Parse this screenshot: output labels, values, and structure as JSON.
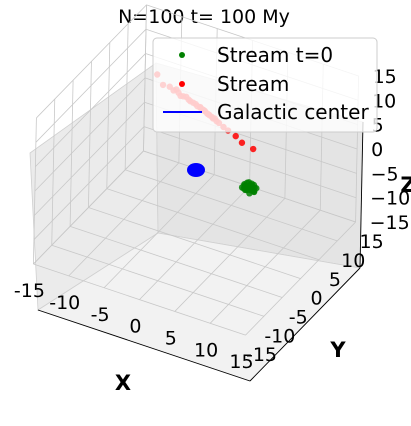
{
  "chart_data": {
    "type": "scatter",
    "projection": "3d",
    "title": "N=100 t= 100 My",
    "xlabel": "X",
    "ylabel": "Y",
    "zlabel": "Z",
    "xlim": [
      -15,
      15
    ],
    "ylim": [
      -15,
      15
    ],
    "zlim": [
      -15,
      15
    ],
    "xticks": [
      -15,
      -10,
      -5,
      0,
      5,
      10,
      15
    ],
    "yticks": [
      -15,
      -10,
      -5,
      0,
      5,
      10,
      15
    ],
    "zticks": [
      -15,
      -10,
      -5,
      0,
      5,
      10,
      15
    ],
    "xtick_labels": [
      "-15",
      "-10",
      "-5",
      "0",
      "5",
      "10",
      "15"
    ],
    "ytick_labels": [
      "-15",
      "-10",
      "-5",
      "0",
      "5",
      "10",
      "15"
    ],
    "ztick_labels": [
      "−15",
      "−10",
      "−5",
      "0",
      "5",
      "10",
      "15"
    ],
    "grid": true,
    "legend_position": "upper-right",
    "series": [
      {
        "name": "Stream t=0",
        "kind": "scatter",
        "color": "#008000",
        "points": [
          [
            5.0,
            5.0,
            -5.0
          ],
          [
            5.3,
            5.2,
            -4.8
          ],
          [
            4.7,
            4.8,
            -5.3
          ],
          [
            5.5,
            4.6,
            -5.1
          ],
          [
            4.5,
            5.4,
            -4.6
          ],
          [
            5.1,
            5.6,
            -5.4
          ],
          [
            4.9,
            4.4,
            -4.9
          ],
          [
            5.7,
            5.0,
            -5.6
          ],
          [
            4.3,
            5.1,
            -5.2
          ],
          [
            5.2,
            4.9,
            -4.4
          ],
          [
            4.8,
            5.3,
            -5.8
          ],
          [
            5.4,
            5.5,
            -4.7
          ],
          [
            4.6,
            4.7,
            -5.5
          ],
          [
            5.6,
            5.3,
            -5.0
          ],
          [
            4.4,
            4.9,
            -4.8
          ],
          [
            5.0,
            5.7,
            -5.2
          ],
          [
            5.0,
            4.3,
            -5.0
          ],
          [
            5.8,
            4.8,
            -5.3
          ],
          [
            4.2,
            5.2,
            -4.9
          ],
          [
            5.3,
            4.5,
            -5.7
          ],
          [
            4.7,
            5.5,
            -4.5
          ],
          [
            5.5,
            5.1,
            -5.4
          ],
          [
            4.5,
            4.5,
            -5.1
          ],
          [
            5.1,
            4.7,
            -4.6
          ],
          [
            4.9,
            5.9,
            -5.0
          ],
          [
            5.9,
            5.2,
            -4.9
          ],
          [
            4.1,
            4.8,
            -5.3
          ]
        ]
      },
      {
        "name": "Stream",
        "kind": "scatter",
        "color": "#ff0000",
        "points": [
          [
            -9.0,
            6.5,
            10.2
          ],
          [
            -7.5,
            5.2,
            9.8
          ],
          [
            -6.2,
            4.5,
            10.6
          ],
          [
            -5.0,
            4.0,
            11.0
          ],
          [
            -4.0,
            3.2,
            10.8
          ],
          [
            -3.0,
            2.8,
            11.4
          ],
          [
            -2.0,
            2.0,
            11.6
          ],
          [
            -1.0,
            1.5,
            11.9
          ],
          [
            0.0,
            0.8,
            12.2
          ],
          [
            1.0,
            0.2,
            12.4
          ],
          [
            2.0,
            -0.5,
            12.6
          ],
          [
            3.0,
            -1.0,
            12.8
          ],
          [
            4.0,
            -1.8,
            13.0
          ],
          [
            5.0,
            -2.5,
            13.2
          ],
          [
            6.0,
            -3.2,
            13.5
          ],
          [
            7.5,
            -4.0,
            13.7
          ],
          [
            -2.5,
            2.5,
            11.3
          ],
          [
            -1.5,
            1.8,
            11.7
          ],
          [
            -0.5,
            1.0,
            12.1
          ],
          [
            0.5,
            0.5,
            12.3
          ],
          [
            1.5,
            -0.2,
            12.5
          ],
          [
            2.5,
            -0.8,
            12.7
          ],
          [
            3.5,
            -1.5,
            12.9
          ],
          [
            -3.5,
            3.0,
            11.1
          ],
          [
            -4.5,
            3.6,
            10.9
          ],
          [
            -0.2,
            1.2,
            11.9
          ],
          [
            0.8,
            0.3,
            12.4
          ],
          [
            1.8,
            -0.4,
            12.6
          ],
          [
            2.8,
            -1.1,
            12.8
          ],
          [
            9.0,
            -5.2,
            14.0
          ],
          [
            11.0,
            -6.0,
            14.3
          ],
          [
            -5.5,
            4.2,
            10.4
          ]
        ]
      },
      {
        "name": "Galactic center",
        "kind": "line",
        "color": "#0000ff",
        "points": [
          [
            0,
            0,
            0
          ]
        ]
      }
    ]
  }
}
